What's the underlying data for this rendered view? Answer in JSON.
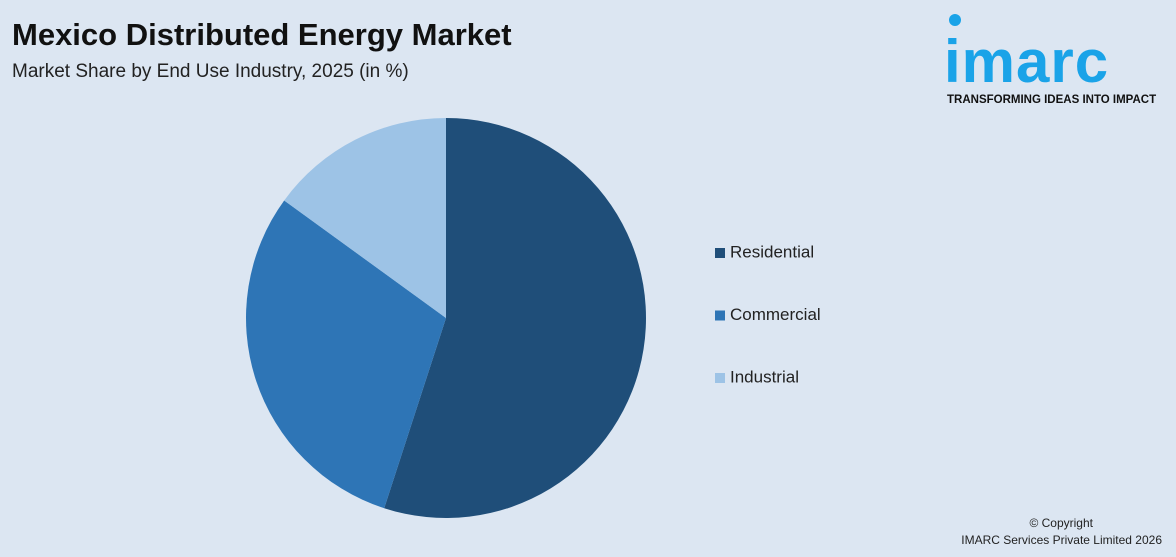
{
  "chart_data": {
    "type": "pie",
    "title": "Mexico Distributed Energy Market",
    "subtitle": "Market Share by End Use Industry, 2025 (in %)",
    "categories": [
      "Residential",
      "Commercial",
      "Industrial"
    ],
    "values": [
      55,
      30,
      15
    ],
    "colors": [
      "#1f4e79",
      "#2e75b6",
      "#9dc3e6"
    ],
    "legend": "right"
  },
  "logo": {
    "name": "imarc",
    "tagline": "TRANSFORMING IDEAS INTO IMPACT"
  },
  "footer": {
    "copyright": "© Copyright",
    "company": "IMARC Services Private Limited 2026"
  }
}
